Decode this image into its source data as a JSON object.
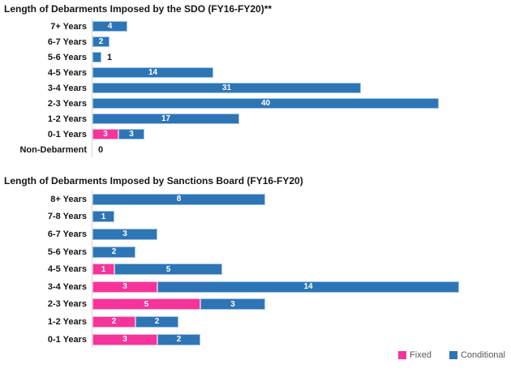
{
  "colors": {
    "fixed": "#F5339A",
    "fixed_border": "#F9AFD7",
    "conditional": "#2E75B6",
    "conditional_border": "#9DC3E6",
    "axis_line": "#D6D6D6",
    "label_text": "#161616",
    "legend_text": "#595959"
  },
  "legend": {
    "items": [
      {
        "label": "Fixed",
        "color": "#F5339A"
      },
      {
        "label": "Conditional",
        "color": "#2E75B6"
      }
    ]
  },
  "chart_data": [
    {
      "type": "bar",
      "orientation": "horizontal",
      "title": "Length of Debarments Imposed by the SDO (FY16-FY20)**",
      "categories": [
        "7+ Years",
        "6-7 Years",
        "5-6 Years",
        "4-5 Years",
        "3-4 Years",
        "2-3 Years",
        "1-2 Years",
        "0-1 Years",
        "Non-Debarment"
      ],
      "series": [
        {
          "name": "Fixed",
          "values": [
            0,
            0,
            0,
            0,
            0,
            0,
            0,
            3,
            0
          ]
        },
        {
          "name": "Conditional",
          "values": [
            4,
            2,
            1,
            14,
            31,
            40,
            17,
            3,
            0
          ]
        }
      ],
      "stacked": true,
      "grid": false,
      "xlim": [
        0,
        48
      ],
      "value_labels": "inside-white, outside-black when bar too small or zero"
    },
    {
      "type": "bar",
      "orientation": "horizontal",
      "title": "Length of Debarments Imposed by Sanctions Board (FY16-FY20)",
      "categories": [
        "8+ Years",
        "7-8 Years",
        "6-7 Years",
        "5-6 Years",
        "4-5 Years",
        "3-4 Years",
        "2-3 Years",
        "1-2 Years",
        "0-1 Years"
      ],
      "series": [
        {
          "name": "Fixed",
          "values": [
            0,
            0,
            0,
            0,
            1,
            3,
            5,
            2,
            3
          ]
        },
        {
          "name": "Conditional",
          "values": [
            8,
            1,
            3,
            2,
            5,
            14,
            3,
            2,
            2
          ]
        }
      ],
      "stacked": true,
      "grid": false,
      "xlim": [
        0,
        19
      ],
      "value_labels": "inside-white"
    }
  ]
}
